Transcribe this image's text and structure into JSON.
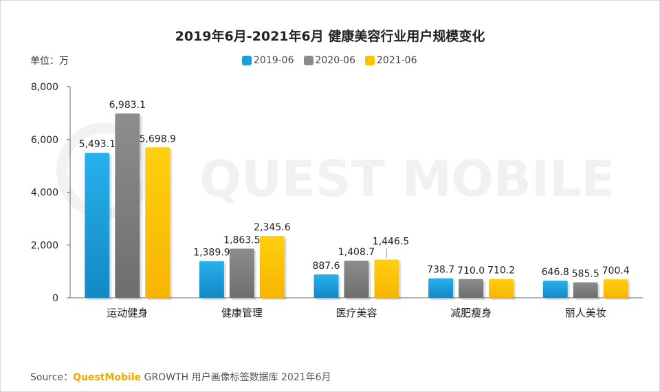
{
  "chart_data": {
    "type": "bar",
    "title": "2019年6月-2021年6月 健康美容行业用户规模变化",
    "unit_label": "单位：万",
    "categories": [
      "运动健身",
      "健康管理",
      "医疗美容",
      "减肥瘦身",
      "丽人美妆"
    ],
    "series": [
      {
        "name": "2019-06",
        "values": [
          5493.1,
          1389.9,
          887.6,
          738.7,
          646.8
        ],
        "labels": [
          "5,493.1",
          "1,389.9",
          "887.6",
          "738.7",
          "646.8"
        ],
        "color": "#1aa0dc"
      },
      {
        "name": "2020-06",
        "values": [
          6983.1,
          1863.5,
          1408.7,
          710.0,
          585.5
        ],
        "labels": [
          "6,983.1",
          "1,863.5",
          "1,408.7",
          "710.0",
          "585.5"
        ],
        "color": "#8c8c8c"
      },
      {
        "name": "2021-06",
        "values": [
          5698.9,
          2345.6,
          1446.5,
          710.2,
          700.4
        ],
        "labels": [
          "5,698.9",
          "2,345.6",
          "1,446.5",
          "710.2",
          "700.4"
        ],
        "color": "#ffc000"
      }
    ],
    "ylim": [
      0,
      8000
    ],
    "yticks": [
      0,
      2000,
      4000,
      6000,
      8000
    ],
    "ytick_labels": [
      "0",
      "2,000",
      "4,000",
      "6,000",
      "8,000"
    ],
    "xlabel": "",
    "ylabel": ""
  },
  "watermark": "QUEST MOBILE",
  "source": {
    "prefix": "Source：",
    "brand": "QuestMobile",
    "rest": "GROWTH 用户画像标签数据库 2021年6月"
  }
}
